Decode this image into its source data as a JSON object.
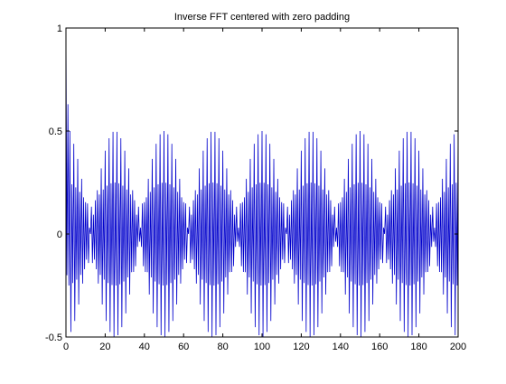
{
  "chart_data": {
    "type": "line",
    "title": "Inverse FFT centered with zero padding",
    "xlabel": "",
    "ylabel": "",
    "xlim": [
      0,
      200
    ],
    "ylim": [
      -0.5,
      1
    ],
    "grid": false,
    "legend": "none",
    "x_ticks": [
      "0",
      "20",
      "40",
      "60",
      "80",
      "100",
      "120",
      "140",
      "160",
      "180",
      "200"
    ],
    "y_ticks": [
      "-0.5",
      "0",
      "0.5",
      "1"
    ],
    "series": [
      {
        "name": "",
        "color": "#0000cc",
        "envelope_period": 50,
        "peak_values": {
          "x": [
            0,
            0.5,
            1,
            1.5,
            2
          ],
          "y": [
            1,
            0.63,
            0.5,
            0.4,
            0.5
          ]
        },
        "model": "y = 0.25*cos(pi*x) + 0.25*cos(pi*x)*cos(2*pi*x/50) with near-zero interleaved samples (alternating ±0.5 oscillation at 0.5 sample spacing)",
        "x_step": 0.5,
        "x_range": [
          0,
          200
        ]
      }
    ]
  }
}
